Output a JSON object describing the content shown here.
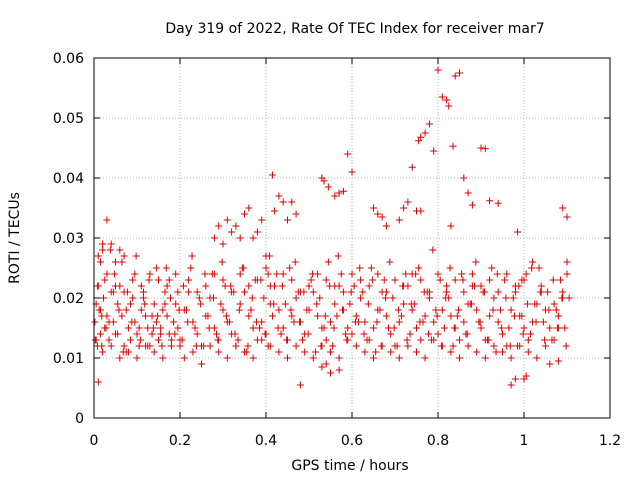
{
  "chart_data": {
    "type": "scatter",
    "title": "Day 319 of 2022, Rate Of TEC Index for receiver mar7",
    "xlabel": "GPS time / hours",
    "ylabel": "ROTI / TECUs",
    "xlim": [
      0,
      1.2
    ],
    "ylim": [
      0,
      0.06
    ],
    "grid": true,
    "marker": "+",
    "marker_color": "#dd0000",
    "x_ticks": [
      {
        "v": 0,
        "label": "0"
      },
      {
        "v": 0.2,
        "label": "0.2"
      },
      {
        "v": 0.4,
        "label": "0.4"
      },
      {
        "v": 0.6,
        "label": "0.6"
      },
      {
        "v": 0.8,
        "label": "0.8"
      },
      {
        "v": 1.0,
        "label": "1"
      },
      {
        "v": 1.2,
        "label": "1.2"
      }
    ],
    "y_ticks": [
      {
        "v": 0,
        "label": "0"
      },
      {
        "v": 0.01,
        "label": "0.01"
      },
      {
        "v": 0.02,
        "label": "0.02"
      },
      {
        "v": 0.03,
        "label": "0.03"
      },
      {
        "v": 0.04,
        "label": "0.04"
      },
      {
        "v": 0.05,
        "label": "0.05"
      },
      {
        "v": 0.06,
        "label": "0.06"
      }
    ],
    "series": [
      {
        "x": [
          0.002,
          0.005,
          0.008,
          0.012,
          0.015,
          0.018,
          0.022,
          0.025,
          0.03,
          0.035,
          0.04,
          0.045,
          0.05,
          0.055,
          0.06,
          0.065,
          0.07,
          0.075,
          0.08,
          0.085,
          0.09,
          0.095,
          0.1,
          0.105,
          0.11,
          0.115,
          0.12,
          0.125,
          0.13,
          0.135,
          0.14,
          0.145,
          0.15,
          0.155,
          0.16,
          0.165,
          0.17,
          0.175,
          0.18,
          0.185,
          0.19,
          0.195,
          0.2,
          0.21,
          0.22,
          0.23,
          0.24,
          0.25,
          0.26,
          0.27,
          0.28,
          0.29,
          0.3,
          0.31,
          0.32,
          0.33,
          0.34,
          0.35,
          0.36,
          0.37,
          0.38,
          0.39,
          0.4,
          0.41,
          0.42,
          0.43,
          0.44,
          0.45,
          0.46,
          0.47,
          0.48,
          0.49,
          0.5,
          0.51,
          0.52,
          0.53,
          0.54,
          0.55,
          0.56,
          0.57,
          0.58,
          0.59,
          0.6,
          0.61,
          0.62,
          0.63,
          0.64,
          0.65,
          0.66,
          0.67,
          0.68,
          0.69,
          0.7,
          0.71,
          0.72,
          0.73,
          0.74,
          0.75,
          0.76,
          0.77,
          0.78,
          0.79,
          0.8,
          0.81,
          0.82,
          0.83,
          0.84,
          0.85,
          0.86,
          0.87,
          0.88,
          0.89,
          0.9,
          0.91,
          0.92,
          0.93,
          0.94,
          0.95,
          0.96,
          0.97,
          0.98,
          0.99,
          1.0,
          1.01,
          1.02,
          1.03,
          1.04,
          1.05,
          1.06,
          1.07,
          1.08,
          1.09,
          1.1,
          0.003,
          0.01,
          0.02,
          0.03,
          0.04,
          0.05,
          0.06,
          0.07,
          0.08,
          0.09,
          0.1,
          0.11,
          0.12,
          0.13,
          0.14,
          0.15,
          0.16,
          0.17,
          0.18,
          0.19,
          0.2,
          0.21,
          0.22,
          0.23,
          0.24,
          0.25,
          0.26,
          0.27,
          0.28,
          0.29,
          0.3,
          0.31,
          0.32,
          0.33,
          0.34,
          0.35,
          0.36,
          0.37,
          0.38,
          0.39,
          0.4,
          0.41,
          0.42,
          0.43,
          0.44,
          0.45,
          0.46,
          0.47,
          0.48,
          0.49,
          0.5,
          0.51,
          0.52,
          0.53,
          0.54,
          0.55,
          0.56,
          0.57,
          0.58,
          0.59,
          0.6,
          0.61,
          0.62,
          0.63,
          0.64,
          0.65,
          0.66,
          0.67,
          0.68,
          0.69,
          0.7,
          0.71,
          0.72,
          0.73,
          0.74,
          0.75,
          0.76,
          0.77,
          0.78,
          0.79,
          0.8,
          0.81,
          0.82,
          0.83,
          0.84,
          0.85,
          0.86,
          0.87,
          0.88,
          0.89,
          0.9,
          0.91,
          0.92,
          0.93,
          0.94,
          0.95,
          0.96,
          0.97,
          0.98,
          0.99,
          1.0,
          1.01,
          1.02,
          1.03,
          1.04,
          1.05,
          1.06,
          1.07,
          1.08,
          1.09,
          1.1,
          0.005,
          0.015,
          0.025,
          0.035,
          0.045,
          0.055,
          0.065,
          0.075,
          0.085,
          0.095,
          0.105,
          0.115,
          0.125,
          0.135,
          0.145,
          0.155,
          0.165,
          0.175,
          0.185,
          0.195,
          0.205,
          0.215,
          0.225,
          0.235,
          0.245,
          0.255,
          0.265,
          0.275,
          0.285,
          0.295,
          0.305,
          0.315,
          0.325,
          0.335,
          0.345,
          0.355,
          0.365,
          0.375,
          0.385,
          0.395,
          0.405,
          0.415,
          0.425,
          0.435,
          0.445,
          0.455,
          0.465,
          0.475,
          0.485,
          0.495,
          0.505,
          0.515,
          0.525,
          0.535,
          0.545,
          0.555,
          0.565,
          0.575,
          0.585,
          0.595,
          0.605,
          0.615,
          0.625,
          0.635,
          0.645,
          0.655,
          0.665,
          0.675,
          0.685,
          0.695,
          0.705,
          0.715,
          0.725,
          0.735,
          0.745,
          0.755,
          0.765,
          0.775,
          0.785,
          0.795,
          0.805,
          0.815,
          0.825,
          0.835,
          0.845,
          0.855,
          0.865,
          0.875,
          0.885,
          0.895,
          0.905,
          0.915,
          0.925,
          0.935,
          0.945,
          0.955,
          0.965,
          0.975,
          0.985,
          0.995,
          1.005,
          1.015,
          1.025,
          1.035,
          1.045,
          1.055,
          1.065,
          1.075,
          1.085,
          1.095,
          1.105,
          0.008,
          0.018,
          0.028,
          0.038,
          0.048,
          0.058,
          0.068,
          0.078,
          0.088,
          0.098,
          0.108,
          0.118,
          0.128,
          0.138,
          0.148,
          0.158,
          0.168,
          0.178,
          0.188,
          0.198,
          0.208,
          0.218,
          0.228,
          0.238,
          0.248,
          0.258,
          0.268,
          0.278,
          0.288,
          0.298,
          0.308,
          0.318,
          0.328,
          0.338,
          0.348,
          0.358,
          0.368,
          0.378,
          0.388,
          0.398,
          0.408,
          0.418,
          0.428,
          0.438,
          0.448,
          0.458,
          0.468,
          0.478,
          0.488,
          0.498,
          0.508,
          0.518,
          0.528,
          0.538,
          0.548,
          0.558,
          0.568,
          0.578,
          0.588,
          0.598,
          0.608,
          0.618,
          0.628,
          0.638,
          0.648,
          0.658,
          0.668,
          0.678,
          0.688,
          0.698,
          0.708,
          0.718,
          0.728,
          0.738,
          0.748,
          0.758,
          0.768,
          0.778,
          0.788,
          0.798,
          0.808,
          0.818,
          0.828,
          0.838,
          0.848,
          0.858,
          0.868,
          0.878,
          0.888,
          0.898,
          0.908,
          0.918,
          0.928,
          0.938,
          0.948,
          0.958,
          0.968,
          0.978,
          0.988,
          0.998,
          1.008,
          1.018,
          1.028,
          1.038,
          1.048,
          1.058,
          1.068,
          1.078,
          1.088,
          1.098,
          0.4,
          0.405,
          0.41,
          0.415,
          0.53,
          0.535,
          0.545,
          0.82,
          0.825,
          0.835,
          0.84,
          0.85,
          0.8,
          0.81,
          0.79,
          0.78,
          0.77,
          0.76,
          0.755,
          0.74,
          0.73,
          0.86,
          0.87,
          0.88,
          0.9,
          0.91,
          0.92,
          0.94,
          0.6,
          0.59,
          0.58,
          0.57,
          0.56,
          0.46,
          0.47,
          0.45,
          0.44,
          0.43,
          0.42,
          0.39,
          0.38,
          0.37,
          0.36,
          0.35,
          0.33,
          0.34,
          0.32,
          0.31,
          0.3,
          0.29,
          0.28,
          0.06,
          0.07,
          0.05,
          0.04,
          0.03,
          0.02,
          0.01,
          0.015,
          0.02,
          0.83,
          0.985,
          0.995,
          1.0,
          1.005,
          0.98,
          0.97,
          0.01,
          0.55,
          0.57,
          0.48,
          0.53,
          0.54,
          1.08,
          1.1,
          1.09,
          0.65,
          0.66,
          0.67,
          0.75,
          0.76,
          0.72,
          0.71,
          0.68
        ],
        "y": [
          0.016,
          0.019,
          0.022,
          0.018,
          0.014,
          0.012,
          0.02,
          0.015,
          0.017,
          0.013,
          0.021,
          0.016,
          0.014,
          0.019,
          0.022,
          0.017,
          0.012,
          0.018,
          0.015,
          0.013,
          0.02,
          0.016,
          0.014,
          0.012,
          0.018,
          0.021,
          0.017,
          0.015,
          0.012,
          0.014,
          0.019,
          0.016,
          0.013,
          0.015,
          0.018,
          0.021,
          0.017,
          0.014,
          0.012,
          0.016,
          0.019,
          0.015,
          0.013,
          0.018,
          0.021,
          0.016,
          0.014,
          0.012,
          0.017,
          0.02,
          0.015,
          0.013,
          0.018,
          0.016,
          0.014,
          0.012,
          0.019,
          0.021,
          0.017,
          0.015,
          0.013,
          0.016,
          0.014,
          0.019,
          0.022,
          0.018,
          0.015,
          0.013,
          0.017,
          0.02,
          0.016,
          0.014,
          0.018,
          0.021,
          0.017,
          0.015,
          0.013,
          0.016,
          0.019,
          0.022,
          0.018,
          0.015,
          0.014,
          0.017,
          0.02,
          0.016,
          0.013,
          0.015,
          0.018,
          0.021,
          0.017,
          0.014,
          0.012,
          0.016,
          0.019,
          0.022,
          0.018,
          0.015,
          0.013,
          0.017,
          0.02,
          0.016,
          0.014,
          0.018,
          0.021,
          0.017,
          0.015,
          0.013,
          0.016,
          0.019,
          0.022,
          0.018,
          0.015,
          0.013,
          0.017,
          0.02,
          0.016,
          0.014,
          0.012,
          0.018,
          0.021,
          0.017,
          0.015,
          0.013,
          0.016,
          0.019,
          0.022,
          0.018,
          0.015,
          0.013,
          0.017,
          0.021,
          0.024,
          0.013,
          0.022,
          0.011,
          0.024,
          0.012,
          0.022,
          0.01,
          0.021,
          0.011,
          0.023,
          0.01,
          0.022,
          0.012,
          0.024,
          0.011,
          0.023,
          0.01,
          0.022,
          0.013,
          0.024,
          0.012,
          0.01,
          0.023,
          0.011,
          0.021,
          0.009,
          0.022,
          0.012,
          0.024,
          0.011,
          0.023,
          0.01,
          0.021,
          0.012,
          0.024,
          0.011,
          0.022,
          0.01,
          0.023,
          0.013,
          0.025,
          0.012,
          0.022,
          0.011,
          0.024,
          0.01,
          0.023,
          0.012,
          0.021,
          0.011,
          0.022,
          0.01,
          0.024,
          0.012,
          0.023,
          0.011,
          0.022,
          0.01,
          0.021,
          0.013,
          0.024,
          0.012,
          0.023,
          0.011,
          0.022,
          0.01,
          0.024,
          0.012,
          0.021,
          0.011,
          0.023,
          0.01,
          0.022,
          0.012,
          0.024,
          0.011,
          0.023,
          0.01,
          0.021,
          0.013,
          0.024,
          0.012,
          0.022,
          0.011,
          0.023,
          0.01,
          0.021,
          0.012,
          0.024,
          0.011,
          0.022,
          0.01,
          0.023,
          0.012,
          0.021,
          0.011,
          0.024,
          0.01,
          0.022,
          0.012,
          0.023,
          0.011,
          0.026,
          0.01,
          0.021,
          0.012,
          0.009,
          0.019,
          0.015,
          0.02,
          0.026,
          0.013,
          0.018,
          0.023,
          0.016,
          0.021,
          0.014,
          0.026,
          0.011,
          0.019,
          0.024,
          0.015,
          0.02,
          0.012,
          0.017,
          0.025,
          0.014,
          0.019,
          0.023,
          0.016,
          0.021,
          0.013,
          0.018,
          0.025,
          0.015,
          0.02,
          0.012,
          0.017,
          0.024,
          0.014,
          0.019,
          0.022,
          0.016,
          0.021,
          0.013,
          0.025,
          0.011,
          0.018,
          0.023,
          0.015,
          0.02,
          0.012,
          0.017,
          0.024,
          0.014,
          0.019,
          0.025,
          0.016,
          0.021,
          0.013,
          0.018,
          0.023,
          0.011,
          0.02,
          0.015,
          0.026,
          0.012,
          0.017,
          0.024,
          0.014,
          0.019,
          0.022,
          0.016,
          0.021,
          0.013,
          0.025,
          0.011,
          0.018,
          0.023,
          0.015,
          0.02,
          0.012,
          0.017,
          0.024,
          0.014,
          0.019,
          0.025,
          0.016,
          0.021,
          0.013,
          0.018,
          0.023,
          0.015,
          0.02,
          0.012,
          0.017,
          0.024,
          0.014,
          0.019,
          0.022,
          0.016,
          0.021,
          0.013,
          0.025,
          0.011,
          0.018,
          0.023,
          0.015,
          0.02,
          0.012,
          0.017,
          0.024,
          0.014,
          0.019,
          0.025,
          0.016,
          0.021,
          0.013,
          0.018,
          0.023,
          0.015,
          0.02,
          0.012,
          0.017,
          0.015,
          0.028,
          0.024,
          0.018,
          0.011,
          0.021,
          0.016,
          0.027,
          0.013,
          0.019,
          0.023,
          0.015,
          0.017,
          0.012,
          0.025,
          0.02,
          0.014,
          0.018,
          0.022,
          0.016,
          0.027,
          0.012,
          0.019,
          0.024,
          0.015,
          0.02,
          0.013,
          0.026,
          0.017,
          0.022,
          0.014,
          0.018,
          0.025,
          0.012,
          0.02,
          0.016,
          0.023,
          0.014,
          0.027,
          0.019,
          0.015,
          0.022,
          0.013,
          0.018,
          0.026,
          0.016,
          0.021,
          0.014,
          0.024,
          0.019,
          0.012,
          0.017,
          0.022,
          0.015,
          0.027,
          0.018,
          0.013,
          0.021,
          0.016,
          0.025,
          0.014,
          0.019,
          0.023,
          0.016,
          0.012,
          0.02,
          0.026,
          0.015,
          0.018,
          0.022,
          0.013,
          0.019,
          0.024,
          0.016,
          0.021,
          0.014,
          0.028,
          0.017,
          0.012,
          0.02,
          0.025,
          0.015,
          0.018,
          0.023,
          0.014,
          0.019,
          0.026,
          0.016,
          0.021,
          0.013,
          0.018,
          0.024,
          0.015,
          0.02,
          0.012,
          0.017,
          0.022,
          0.014,
          0.019,
          0.025,
          0.016,
          0.021,
          0.013,
          0.018,
          0.023,
          0.015,
          0.02,
          0.012,
          0.027,
          0.024,
          0.022,
          0.0405,
          0.04,
          0.0395,
          0.0385,
          0.053,
          0.052,
          0.0453,
          0.057,
          0.0575,
          0.058,
          0.0535,
          0.0445,
          0.049,
          0.0475,
          0.0468,
          0.0462,
          0.0418,
          0.036,
          0.04,
          0.0375,
          0.0355,
          0.045,
          0.0449,
          0.0362,
          0.0358,
          0.041,
          0.044,
          0.0378,
          0.0375,
          0.037,
          0.036,
          0.034,
          0.033,
          0.036,
          0.037,
          0.0345,
          0.033,
          0.031,
          0.03,
          0.035,
          0.034,
          0.032,
          0.03,
          0.031,
          0.033,
          0.029,
          0.032,
          0.03,
          0.028,
          0.027,
          0.026,
          0.029,
          0.033,
          0.028,
          0.027,
          0.026,
          0.029,
          0.032,
          0.031,
          0.023,
          0.0065,
          0.007,
          0.0065,
          0.0055,
          0.006,
          0.0075,
          0.008,
          0.0055,
          0.0085,
          0.009,
          0.0095,
          0.0335,
          0.035,
          0.035,
          0.034,
          0.0335,
          0.0345,
          0.0345,
          0.035,
          0.033,
          0.032
        ]
      }
    ]
  }
}
